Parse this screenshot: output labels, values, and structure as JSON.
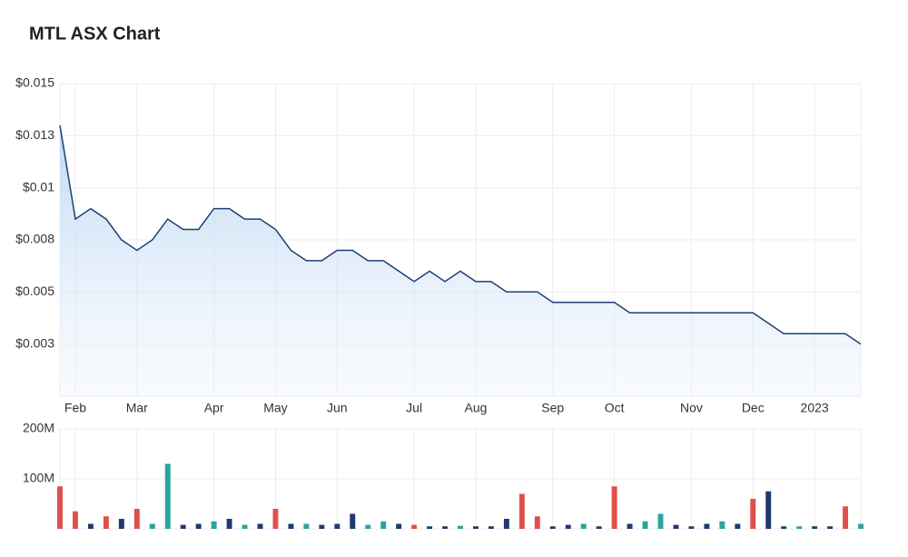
{
  "chart_data": [
    {
      "type": "line",
      "title": "MTL ASX Chart",
      "categories": [
        null,
        "Feb",
        null,
        null,
        null,
        "Mar",
        null,
        null,
        null,
        null,
        "Apr",
        null,
        null,
        null,
        "May",
        null,
        null,
        null,
        "Jun",
        null,
        null,
        null,
        null,
        "Jul",
        null,
        null,
        null,
        "Aug",
        null,
        null,
        null,
        null,
        "Sep",
        null,
        null,
        null,
        "Oct",
        null,
        null,
        null,
        null,
        "Nov",
        null,
        null,
        null,
        "Dec",
        null,
        null,
        null,
        "2023",
        null,
        null,
        null
      ],
      "series": [
        {
          "name": "MTL",
          "color": "#1e3f73",
          "values": [
            0.013,
            0.0085,
            0.009,
            0.0085,
            0.0075,
            0.007,
            0.0075,
            0.0085,
            0.008,
            0.008,
            0.009,
            0.009,
            0.0085,
            0.0085,
            0.008,
            0.007,
            0.0065,
            0.0065,
            0.007,
            0.007,
            0.0065,
            0.0065,
            0.006,
            0.0055,
            0.006,
            0.0055,
            0.006,
            0.0055,
            0.0055,
            0.005,
            0.005,
            0.005,
            0.0045,
            0.0045,
            0.0045,
            0.0045,
            0.0045,
            0.004,
            0.004,
            0.004,
            0.004,
            0.004,
            0.004,
            0.004,
            0.004,
            0.004,
            0.0035,
            0.003,
            0.003,
            0.003,
            0.003,
            0.003,
            0.0025
          ]
        }
      ],
      "ylim": [
        0,
        0.015
      ],
      "yticks": [
        {
          "value": 0.0025,
          "label": "$0.003"
        },
        {
          "value": 0.005,
          "label": "$0.005"
        },
        {
          "value": 0.0075,
          "label": "$0.008"
        },
        {
          "value": 0.01,
          "label": "$0.01"
        },
        {
          "value": 0.0125,
          "label": "$0.013"
        },
        {
          "value": 0.015,
          "label": "$0.015"
        }
      ],
      "grid": true
    },
    {
      "type": "bar",
      "values": [
        85000000,
        35000000,
        10000000,
        25000000,
        20000000,
        40000000,
        10000000,
        130000000,
        8000000,
        10000000,
        15000000,
        20000000,
        8000000,
        10000000,
        40000000,
        10000000,
        10000000,
        8000000,
        10000000,
        30000000,
        8000000,
        15000000,
        10000000,
        8000000,
        5000000,
        5000000,
        6000000,
        5000000,
        5000000,
        20000000,
        70000000,
        25000000,
        5000000,
        8000000,
        10000000,
        5000000,
        85000000,
        10000000,
        15000000,
        30000000,
        8000000,
        5000000,
        10000000,
        15000000,
        10000000,
        60000000,
        75000000,
        5000000,
        5000000,
        5000000,
        5000000,
        45000000,
        10000000
      ],
      "colors": [
        "#e0504a",
        "#e0504a",
        "#1e3a6e",
        "#e0504a",
        "#1e3a6e",
        "#e0504a",
        "#26a69a",
        "#26a69a",
        "#1e3a6e",
        "#1e3a6e",
        "#26a69a",
        "#1e3a6e",
        "#26a69a",
        "#1e3a6e",
        "#e0504a",
        "#1e3a6e",
        "#26a69a",
        "#1e3a6e",
        "#1e3a6e",
        "#1e3a6e",
        "#26a69a",
        "#26a69a",
        "#1e3a6e",
        "#e0504a",
        "#1e3a6e",
        "#1e3a6e",
        "#26a69a",
        "#1e3a6e",
        "#1e3a6e",
        "#1e3a6e",
        "#e0504a",
        "#e0504a",
        "#1e3a6e",
        "#1e3a6e",
        "#26a69a",
        "#1e3a6e",
        "#e0504a",
        "#1e3a6e",
        "#26a69a",
        "#26a69a",
        "#1e3a6e",
        "#1e3a6e",
        "#1e3a6e",
        "#26a69a",
        "#1e3a6e",
        "#e0504a",
        "#1e3a6e",
        "#1e3a6e",
        "#26a69a",
        "#1e3a6e",
        "#1e3a6e",
        "#e0504a",
        "#26a69a"
      ],
      "ylim": [
        0,
        200000000
      ],
      "yticks": [
        {
          "value": 100000000,
          "label": "100M"
        },
        {
          "value": 200000000,
          "label": "200M"
        }
      ],
      "grid": true
    }
  ]
}
